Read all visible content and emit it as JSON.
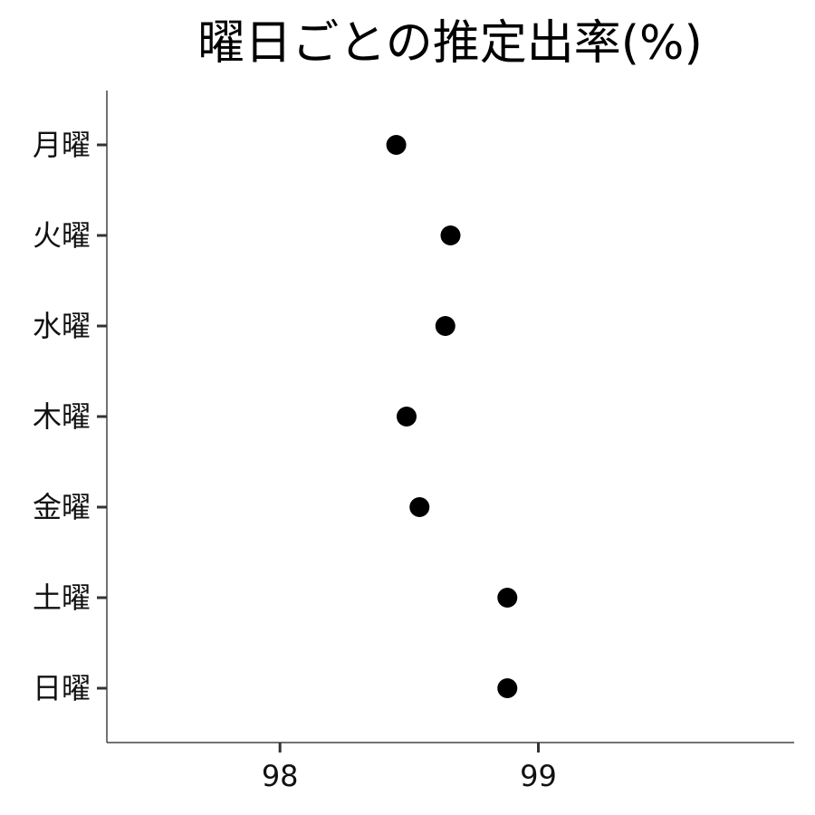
{
  "chart_data": {
    "type": "scatter",
    "title": "曜日ごとの推定出率(%)",
    "xlabel": "",
    "ylabel": "",
    "categories": [
      "月曜",
      "火曜",
      "水曜",
      "木曜",
      "金曜",
      "土曜",
      "日曜"
    ],
    "values": [
      98.45,
      98.66,
      98.64,
      98.49,
      98.54,
      98.88,
      98.88
    ],
    "xlim": [
      97.33,
      99.99
    ],
    "xticks": [
      98,
      99
    ],
    "xtick_labels": [
      "98",
      "99"
    ],
    "grid": false,
    "legend": "none",
    "point_color": "#000000"
  }
}
